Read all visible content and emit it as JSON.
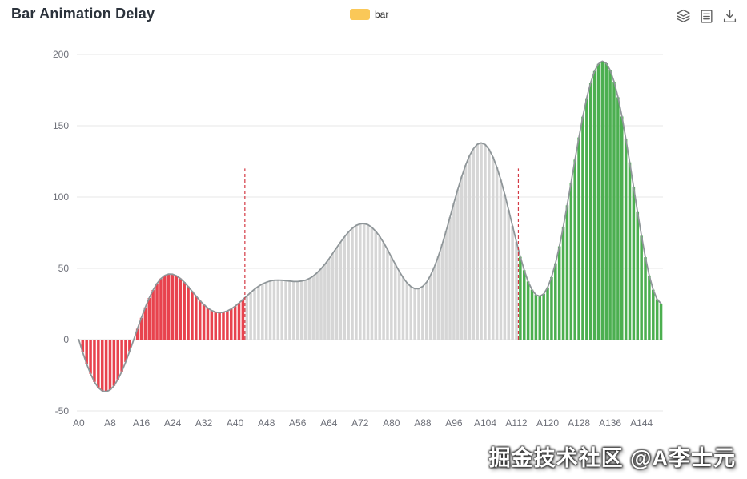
{
  "header": {
    "title": "Bar Animation Delay"
  },
  "legend": {
    "items": [
      {
        "label": "bar",
        "color": "#fac858",
        "selected": true
      }
    ]
  },
  "toolbox": {
    "tools": [
      "stack-toggle",
      "data-view",
      "save-as-image"
    ]
  },
  "watermark": "掘金技术社区 @A李士元",
  "chart_data": {
    "type": "bar",
    "title": "Bar Animation Delay",
    "xlabel": "",
    "ylabel": "",
    "ylim": [
      -50,
      200
    ],
    "yticks": [
      -50,
      0,
      50,
      100,
      150,
      200
    ],
    "grid": true,
    "legend_position": "top",
    "category_prefix": "A",
    "n_points": 150,
    "x_tick_labels": [
      "A0",
      "A8",
      "A16",
      "A24",
      "A32",
      "A40",
      "A48",
      "A56",
      "A64",
      "A72",
      "A80",
      "A88",
      "A96",
      "A104",
      "A112",
      "A120",
      "A128",
      "A136",
      "A144"
    ],
    "series": [
      {
        "name": "bar",
        "values": [
          0,
          -8.9,
          -17,
          -24,
          -29.7,
          -33.7,
          -36,
          -36.5,
          -35.3,
          -32.4,
          -28,
          -22.4,
          -15.7,
          -8.2,
          -0.4,
          7.6,
          15.3,
          22.6,
          29.2,
          34.8,
          39.4,
          42.8,
          45,
          46,
          45.9,
          44.8,
          42.9,
          40.3,
          37.2,
          33.9,
          30.6,
          27.4,
          24.6,
          22.2,
          20.4,
          19.3,
          18.9,
          19.2,
          20.1,
          21.5,
          23.4,
          25.7,
          28.2,
          30.7,
          33.2,
          35.4,
          37.4,
          39.1,
          40.3,
          41.2,
          41.7,
          41.8,
          41.7,
          41.4,
          41.1,
          40.8,
          40.8,
          41.1,
          41.7,
          42.9,
          44.6,
          46.9,
          49.7,
          52.9,
          56.6,
          60.5,
          64.5,
          68.4,
          72.1,
          75.4,
          78.1,
          80.1,
          81.2,
          81.4,
          80.6,
          78.8,
          76,
          72.4,
          68,
          63.2,
          58,
          52.9,
          47.9,
          43.5,
          39.8,
          37.2,
          35.8,
          35.8,
          37.3,
          40.3,
          45,
          51,
          58.4,
          66.9,
          76.2,
          85.9,
          95.8,
          105.4,
          114.4,
          122.4,
          129,
          133.9,
          137,
          138,
          136.8,
          133.5,
          128.1,
          120.9,
          112.1,
          102,
          91.1,
          79.9,
          68.7,
          58.1,
          48.7,
          40.8,
          35,
          31.4,
          30.4,
          32.1,
          36.6,
          43.9,
          53.5,
          65.4,
          79.2,
          94.2,
          110.1,
          126.2,
          141.8,
          156.4,
          169.3,
          180.1,
          188.3,
          193.4,
          195.3,
          193.8,
          189,
          180.9,
          170,
          156.5,
          141,
          124.3,
          106.8,
          89.4,
          72.8,
          57.8,
          45,
          35,
          28.3,
          25.3
        ]
      }
    ],
    "zones": [
      {
        "name": "red",
        "from": 0,
        "to": 42,
        "color": "#e8434e"
      },
      {
        "name": "gray",
        "from": 43,
        "to": 112,
        "color": "#d6d6d6"
      },
      {
        "name": "green",
        "from": 113,
        "to": 149,
        "color": "#4caf50"
      }
    ],
    "outline_color": "#8f9699",
    "markline_color": "#d43a45",
    "mark_lines": [
      {
        "at_index": 43,
        "to_value": 120
      },
      {
        "at_index": 113,
        "to_value": 120
      }
    ]
  }
}
